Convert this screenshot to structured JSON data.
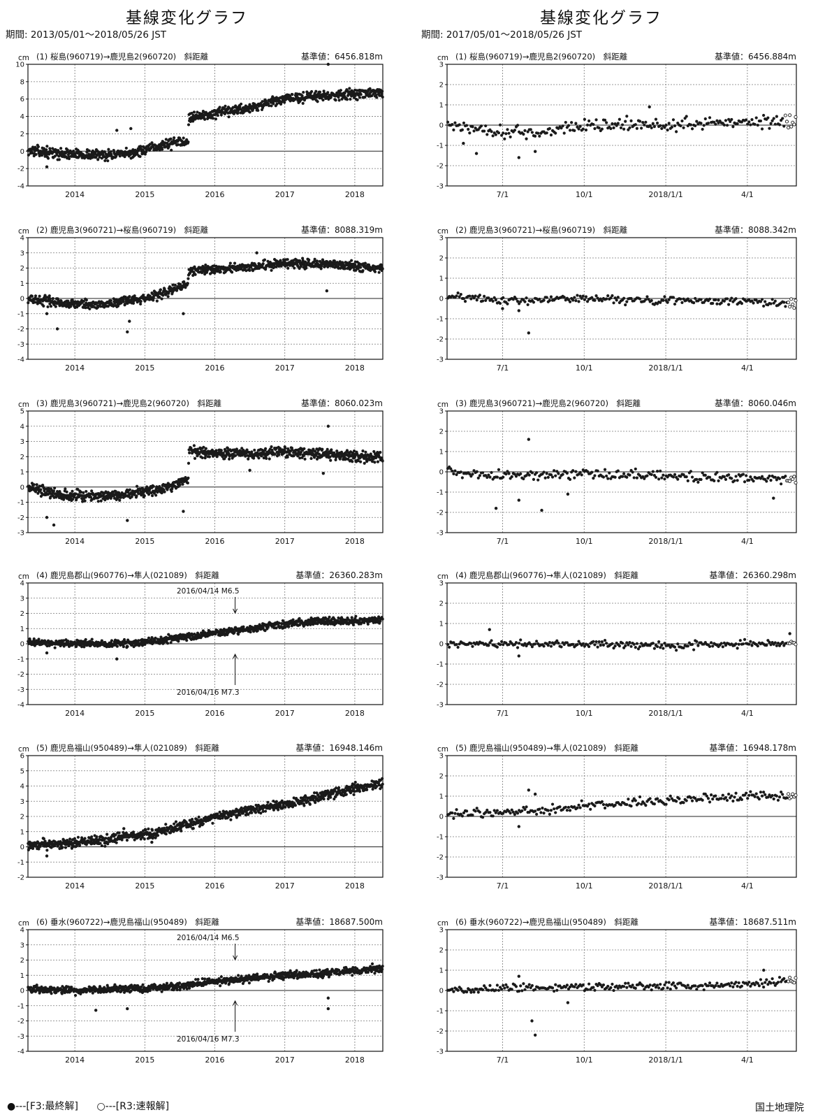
{
  "columns": [
    {
      "title": "基線変化グラフ",
      "period": "期間: 2013/05/01～2018/05/26 JST"
    },
    {
      "title": "基線変化グラフ",
      "period": "期間: 2017/05/01～2018/05/26 JST"
    }
  ],
  "legend": {
    "final": "●---[F3:最終解]",
    "rapid": "○---[R3:速報解]"
  },
  "footer": "国土地理院",
  "chart_data": [
    {
      "type": "scatter",
      "unit": "cm",
      "title": "(1) 桜島(960719)→鹿児島2(960720)　斜距離",
      "ref": "基準値：6456.818m",
      "ylim": [
        -4,
        10
      ],
      "ystep": 2,
      "xlim": [
        2013.33,
        2018.4
      ],
      "xticks": [
        {
          "v": 2014,
          "label": "2014"
        },
        {
          "v": 2015,
          "label": "2015"
        },
        {
          "v": 2016,
          "label": "2016"
        },
        {
          "v": 2017,
          "label": "2017"
        },
        {
          "v": 2018,
          "label": "2018"
        }
      ],
      "trend": [
        [
          2013.33,
          0.1
        ],
        [
          2013.8,
          -0.3
        ],
        [
          2014.3,
          -0.4
        ],
        [
          2014.7,
          -0.4
        ],
        [
          2015.0,
          0.1
        ],
        [
          2015.3,
          0.8
        ],
        [
          2015.62,
          1.3
        ],
        [
          2015.63,
          3.9
        ],
        [
          2016.0,
          4.3
        ],
        [
          2016.5,
          5.0
        ],
        [
          2017.0,
          6.0
        ],
        [
          2017.5,
          6.4
        ],
        [
          2018.0,
          6.6
        ],
        [
          2018.4,
          6.7
        ]
      ],
      "noise": 0.35,
      "outliers": [
        [
          2017.62,
          10.0
        ],
        [
          2014.6,
          2.4
        ],
        [
          2014.8,
          2.6
        ],
        [
          2013.6,
          -1.8
        ],
        [
          2016.5,
          4.5
        ]
      ],
      "rapid_tail": 0,
      "ann": []
    },
    {
      "type": "scatter",
      "unit": "cm",
      "title": "(1) 桜島(960719)→鹿児島2(960720)　斜距離",
      "ref": "基準値：6456.884m",
      "ylim": [
        -3,
        3
      ],
      "ystep": 1,
      "xlim": [
        2017.33,
        2018.4
      ],
      "xticks": [
        {
          "v": 2017.5,
          "label": "7/1"
        },
        {
          "v": 2017.75,
          "label": "10/1"
        },
        {
          "v": 2018.0,
          "label": "2018/1/1"
        },
        {
          "v": 2018.25,
          "label": "4/1"
        }
      ],
      "trend": [
        [
          2017.33,
          0.0
        ],
        [
          2017.5,
          -0.3
        ],
        [
          2017.6,
          -0.4
        ],
        [
          2017.75,
          0.0
        ],
        [
          2018.0,
          0.0
        ],
        [
          2018.25,
          0.2
        ],
        [
          2018.4,
          0.2
        ]
      ],
      "noise": 0.2,
      "outliers": [
        [
          2017.38,
          -0.9
        ],
        [
          2017.42,
          -1.4
        ],
        [
          2017.55,
          -1.6
        ],
        [
          2017.6,
          -1.3
        ],
        [
          2017.95,
          0.9
        ]
      ],
      "rapid_tail": 8,
      "ann": []
    },
    {
      "type": "scatter",
      "unit": "cm",
      "title": "(2) 鹿児島3(960721)→桜島(960719)　斜距離",
      "ref": "基準値：8088.319m",
      "ylim": [
        -4,
        4
      ],
      "ystep": 1,
      "xlim": [
        2013.33,
        2018.4
      ],
      "xticks": [
        {
          "v": 2014,
          "label": "2014"
        },
        {
          "v": 2015,
          "label": "2015"
        },
        {
          "v": 2016,
          "label": "2016"
        },
        {
          "v": 2017,
          "label": "2017"
        },
        {
          "v": 2018,
          "label": "2018"
        }
      ],
      "trend": [
        [
          2013.33,
          0.0
        ],
        [
          2013.8,
          -0.3
        ],
        [
          2014.3,
          -0.4
        ],
        [
          2014.7,
          -0.2
        ],
        [
          2015.0,
          0.0
        ],
        [
          2015.3,
          0.4
        ],
        [
          2015.62,
          1.0
        ],
        [
          2015.63,
          1.8
        ],
        [
          2016.0,
          1.9
        ],
        [
          2016.5,
          2.1
        ],
        [
          2017.0,
          2.3
        ],
        [
          2017.5,
          2.3
        ],
        [
          2018.0,
          2.1
        ],
        [
          2018.4,
          2.0
        ]
      ],
      "noise": 0.18,
      "outliers": [
        [
          2013.6,
          -1.0
        ],
        [
          2013.75,
          -2.0
        ],
        [
          2014.75,
          -2.2
        ],
        [
          2014.78,
          -1.5
        ],
        [
          2016.6,
          3.0
        ],
        [
          2017.6,
          0.5
        ],
        [
          2015.55,
          -1.0
        ]
      ],
      "rapid_tail": 0,
      "ann": []
    },
    {
      "type": "scatter",
      "unit": "cm",
      "title": "(2) 鹿児島3(960721)→桜島(960719)　斜距離",
      "ref": "基準値：8088.342m",
      "ylim": [
        -3,
        3
      ],
      "ystep": 1,
      "xlim": [
        2017.33,
        2018.4
      ],
      "xticks": [
        {
          "v": 2017.5,
          "label": "7/1"
        },
        {
          "v": 2017.75,
          "label": "10/1"
        },
        {
          "v": 2018.0,
          "label": "2018/1/1"
        },
        {
          "v": 2018.25,
          "label": "4/1"
        }
      ],
      "trend": [
        [
          2017.33,
          0.1
        ],
        [
          2017.5,
          -0.1
        ],
        [
          2017.75,
          0.0
        ],
        [
          2018.0,
          -0.1
        ],
        [
          2018.25,
          -0.1
        ],
        [
          2018.4,
          -0.3
        ]
      ],
      "noise": 0.12,
      "outliers": [
        [
          2017.58,
          -1.7
        ],
        [
          2017.55,
          -0.6
        ],
        [
          2017.5,
          -0.5
        ]
      ],
      "rapid_tail": 6,
      "ann": []
    },
    {
      "type": "scatter",
      "unit": "cm",
      "title": "(3) 鹿児島3(960721)→鹿児島2(960720)　斜距離",
      "ref": "基準値：8060.023m",
      "ylim": [
        -3,
        5
      ],
      "ystep": 1,
      "xlim": [
        2013.33,
        2018.4
      ],
      "xticks": [
        {
          "v": 2014,
          "label": "2014"
        },
        {
          "v": 2015,
          "label": "2015"
        },
        {
          "v": 2016,
          "label": "2016"
        },
        {
          "v": 2017,
          "label": "2017"
        },
        {
          "v": 2018,
          "label": "2018"
        }
      ],
      "trend": [
        [
          2013.33,
          0.0
        ],
        [
          2013.8,
          -0.5
        ],
        [
          2014.3,
          -0.6
        ],
        [
          2014.7,
          -0.5
        ],
        [
          2015.0,
          -0.3
        ],
        [
          2015.3,
          0.0
        ],
        [
          2015.62,
          0.4
        ],
        [
          2015.63,
          2.4
        ],
        [
          2016.0,
          2.3
        ],
        [
          2016.5,
          2.2
        ],
        [
          2017.0,
          2.3
        ],
        [
          2017.5,
          2.2
        ],
        [
          2018.0,
          2.0
        ],
        [
          2018.4,
          1.9
        ]
      ],
      "noise": 0.22,
      "outliers": [
        [
          2013.6,
          -2.0
        ],
        [
          2013.7,
          -2.5
        ],
        [
          2014.75,
          -2.2
        ],
        [
          2015.55,
          -1.6
        ],
        [
          2017.62,
          4.0
        ],
        [
          2016.5,
          1.1
        ],
        [
          2017.55,
          0.9
        ]
      ],
      "rapid_tail": 0,
      "ann": []
    },
    {
      "type": "scatter",
      "unit": "cm",
      "title": "(3) 鹿児島3(960721)→鹿児島2(960720)　斜距離",
      "ref": "基準値：8060.046m",
      "ylim": [
        -3,
        3
      ],
      "ystep": 1,
      "xlim": [
        2017.33,
        2018.4
      ],
      "xticks": [
        {
          "v": 2017.5,
          "label": "7/1"
        },
        {
          "v": 2017.75,
          "label": "10/1"
        },
        {
          "v": 2018.0,
          "label": "2018/1/1"
        },
        {
          "v": 2018.25,
          "label": "4/1"
        }
      ],
      "trend": [
        [
          2017.33,
          0.0
        ],
        [
          2017.5,
          -0.2
        ],
        [
          2017.75,
          -0.1
        ],
        [
          2018.0,
          -0.2
        ],
        [
          2018.25,
          -0.3
        ],
        [
          2018.4,
          -0.4
        ]
      ],
      "noise": 0.15,
      "outliers": [
        [
          2017.58,
          1.6
        ],
        [
          2017.48,
          -1.8
        ],
        [
          2017.62,
          -1.9
        ],
        [
          2017.55,
          -1.4
        ],
        [
          2017.7,
          -1.1
        ],
        [
          2018.33,
          -1.3
        ]
      ],
      "rapid_tail": 7,
      "ann": []
    },
    {
      "type": "scatter",
      "unit": "cm",
      "title": "(4) 鹿児島郡山(960776)→隼人(021089)　斜距離",
      "ref": "基準値：26360.283m",
      "ylim": [
        -4,
        4
      ],
      "ystep": 1,
      "xlim": [
        2013.33,
        2018.4
      ],
      "xticks": [
        {
          "v": 2014,
          "label": "2014"
        },
        {
          "v": 2015,
          "label": "2015"
        },
        {
          "v": 2016,
          "label": "2016"
        },
        {
          "v": 2017,
          "label": "2017"
        },
        {
          "v": 2018,
          "label": "2018"
        }
      ],
      "trend": [
        [
          2013.33,
          0.1
        ],
        [
          2014.0,
          0.0
        ],
        [
          2014.5,
          0.0
        ],
        [
          2015.0,
          0.1
        ],
        [
          2015.5,
          0.4
        ],
        [
          2016.0,
          0.7
        ],
        [
          2016.5,
          1.0
        ],
        [
          2017.0,
          1.3
        ],
        [
          2017.5,
          1.5
        ],
        [
          2018.0,
          1.5
        ],
        [
          2018.4,
          1.6
        ]
      ],
      "noise": 0.14,
      "outliers": [
        [
          2014.6,
          -1.0
        ],
        [
          2013.6,
          -0.6
        ]
      ],
      "rapid_tail": 0,
      "ann": [
        {
          "x": 2016.29,
          "text": "2016/04/14 M6.5",
          "side": "top"
        },
        {
          "x": 2016.29,
          "text": "2016/04/16 M7.3",
          "side": "bottom"
        }
      ]
    },
    {
      "type": "scatter",
      "unit": "cm",
      "title": "(4) 鹿児島郡山(960776)→隼人(021089)　斜距離",
      "ref": "基準値：26360.298m",
      "ylim": [
        -3,
        3
      ],
      "ystep": 1,
      "xlim": [
        2017.33,
        2018.4
      ],
      "xticks": [
        {
          "v": 2017.5,
          "label": "7/1"
        },
        {
          "v": 2017.75,
          "label": "10/1"
        },
        {
          "v": 2018.0,
          "label": "2018/1/1"
        },
        {
          "v": 2018.25,
          "label": "4/1"
        }
      ],
      "trend": [
        [
          2017.33,
          0.0
        ],
        [
          2017.5,
          0.0
        ],
        [
          2017.75,
          0.0
        ],
        [
          2018.0,
          -0.1
        ],
        [
          2018.25,
          0.0
        ],
        [
          2018.4,
          0.0
        ]
      ],
      "noise": 0.11,
      "outliers": [
        [
          2017.46,
          0.7
        ],
        [
          2017.55,
          -0.6
        ],
        [
          2018.38,
          0.5
        ]
      ],
      "rapid_tail": 6,
      "ann": []
    },
    {
      "type": "scatter",
      "unit": "cm",
      "title": "(5) 鹿児島福山(950489)→隼人(021089)　斜距離",
      "ref": "基準値：16948.146m",
      "ylim": [
        -2,
        6
      ],
      "ystep": 1,
      "xlim": [
        2013.33,
        2018.4
      ],
      "xticks": [
        {
          "v": 2014,
          "label": "2014"
        },
        {
          "v": 2015,
          "label": "2015"
        },
        {
          "v": 2016,
          "label": "2016"
        },
        {
          "v": 2017,
          "label": "2017"
        },
        {
          "v": 2018,
          "label": "2018"
        }
      ],
      "trend": [
        [
          2013.33,
          0.1
        ],
        [
          2014.0,
          0.3
        ],
        [
          2014.5,
          0.5
        ],
        [
          2015.0,
          0.8
        ],
        [
          2015.5,
          1.3
        ],
        [
          2016.0,
          2.0
        ],
        [
          2016.5,
          2.4
        ],
        [
          2017.0,
          2.8
        ],
        [
          2017.5,
          3.3
        ],
        [
          2018.0,
          3.8
        ],
        [
          2018.4,
          4.2
        ]
      ],
      "noise": 0.2,
      "outliers": [
        [
          2013.6,
          -0.6
        ],
        [
          2014.7,
          1.2
        ],
        [
          2015.1,
          0.3
        ]
      ],
      "rapid_tail": 0,
      "ann": []
    },
    {
      "type": "scatter",
      "unit": "cm",
      "title": "(5) 鹿児島福山(950489)→隼人(021089)　斜距離",
      "ref": "基準値：16948.178m",
      "ylim": [
        -3,
        3
      ],
      "ystep": 1,
      "xlim": [
        2017.33,
        2018.4
      ],
      "xticks": [
        {
          "v": 2017.5,
          "label": "7/1"
        },
        {
          "v": 2017.75,
          "label": "10/1"
        },
        {
          "v": 2018.0,
          "label": "2018/1/1"
        },
        {
          "v": 2018.25,
          "label": "4/1"
        }
      ],
      "trend": [
        [
          2017.33,
          0.1
        ],
        [
          2017.5,
          0.2
        ],
        [
          2017.75,
          0.5
        ],
        [
          2018.0,
          0.8
        ],
        [
          2018.25,
          1.0
        ],
        [
          2018.4,
          1.0
        ]
      ],
      "noise": 0.13,
      "outliers": [
        [
          2017.58,
          1.3
        ],
        [
          2017.55,
          -0.5
        ],
        [
          2017.6,
          1.1
        ]
      ],
      "rapid_tail": 6,
      "ann": []
    },
    {
      "type": "scatter",
      "unit": "cm",
      "title": "(6) 垂水(960722)→鹿児島福山(950489)　斜距離",
      "ref": "基準値：18687.500m",
      "ylim": [
        -4,
        4
      ],
      "ystep": 1,
      "xlim": [
        2013.33,
        2018.4
      ],
      "xticks": [
        {
          "v": 2014,
          "label": "2014"
        },
        {
          "v": 2015,
          "label": "2015"
        },
        {
          "v": 2016,
          "label": "2016"
        },
        {
          "v": 2017,
          "label": "2017"
        },
        {
          "v": 2018,
          "label": "2018"
        }
      ],
      "trend": [
        [
          2013.33,
          0.1
        ],
        [
          2014.0,
          0.0
        ],
        [
          2014.5,
          0.1
        ],
        [
          2015.0,
          0.1
        ],
        [
          2015.5,
          0.3
        ],
        [
          2016.0,
          0.6
        ],
        [
          2016.5,
          0.8
        ],
        [
          2017.0,
          1.0
        ],
        [
          2017.5,
          1.1
        ],
        [
          2018.0,
          1.3
        ],
        [
          2018.4,
          1.5
        ]
      ],
      "noise": 0.15,
      "outliers": [
        [
          2014.3,
          -1.3
        ],
        [
          2014.75,
          -1.2
        ],
        [
          2017.62,
          -1.2
        ],
        [
          2017.62,
          -0.5
        ]
      ],
      "rapid_tail": 0,
      "ann": [
        {
          "x": 2016.29,
          "text": "2016/04/14 M6.5",
          "side": "top"
        },
        {
          "x": 2016.29,
          "text": "2016/04/16 M7.3",
          "side": "bottom"
        }
      ]
    },
    {
      "type": "scatter",
      "unit": "cm",
      "title": "(6) 垂水(960722)→鹿児島福山(950489)　斜距離",
      "ref": "基準値：18687.511m",
      "ylim": [
        -3,
        3
      ],
      "ystep": 1,
      "xlim": [
        2017.33,
        2018.4
      ],
      "xticks": [
        {
          "v": 2017.5,
          "label": "7/1"
        },
        {
          "v": 2017.75,
          "label": "10/1"
        },
        {
          "v": 2018.0,
          "label": "2018/1/1"
        },
        {
          "v": 2018.25,
          "label": "4/1"
        }
      ],
      "trend": [
        [
          2017.33,
          0.0
        ],
        [
          2017.5,
          0.1
        ],
        [
          2017.75,
          0.2
        ],
        [
          2018.0,
          0.2
        ],
        [
          2018.25,
          0.3
        ],
        [
          2018.4,
          0.5
        ]
      ],
      "noise": 0.12,
      "outliers": [
        [
          2017.59,
          -1.5
        ],
        [
          2017.6,
          -2.2
        ],
        [
          2017.55,
          0.7
        ],
        [
          2018.3,
          1.0
        ],
        [
          2017.7,
          -0.6
        ]
      ],
      "rapid_tail": 6,
      "ann": []
    }
  ]
}
